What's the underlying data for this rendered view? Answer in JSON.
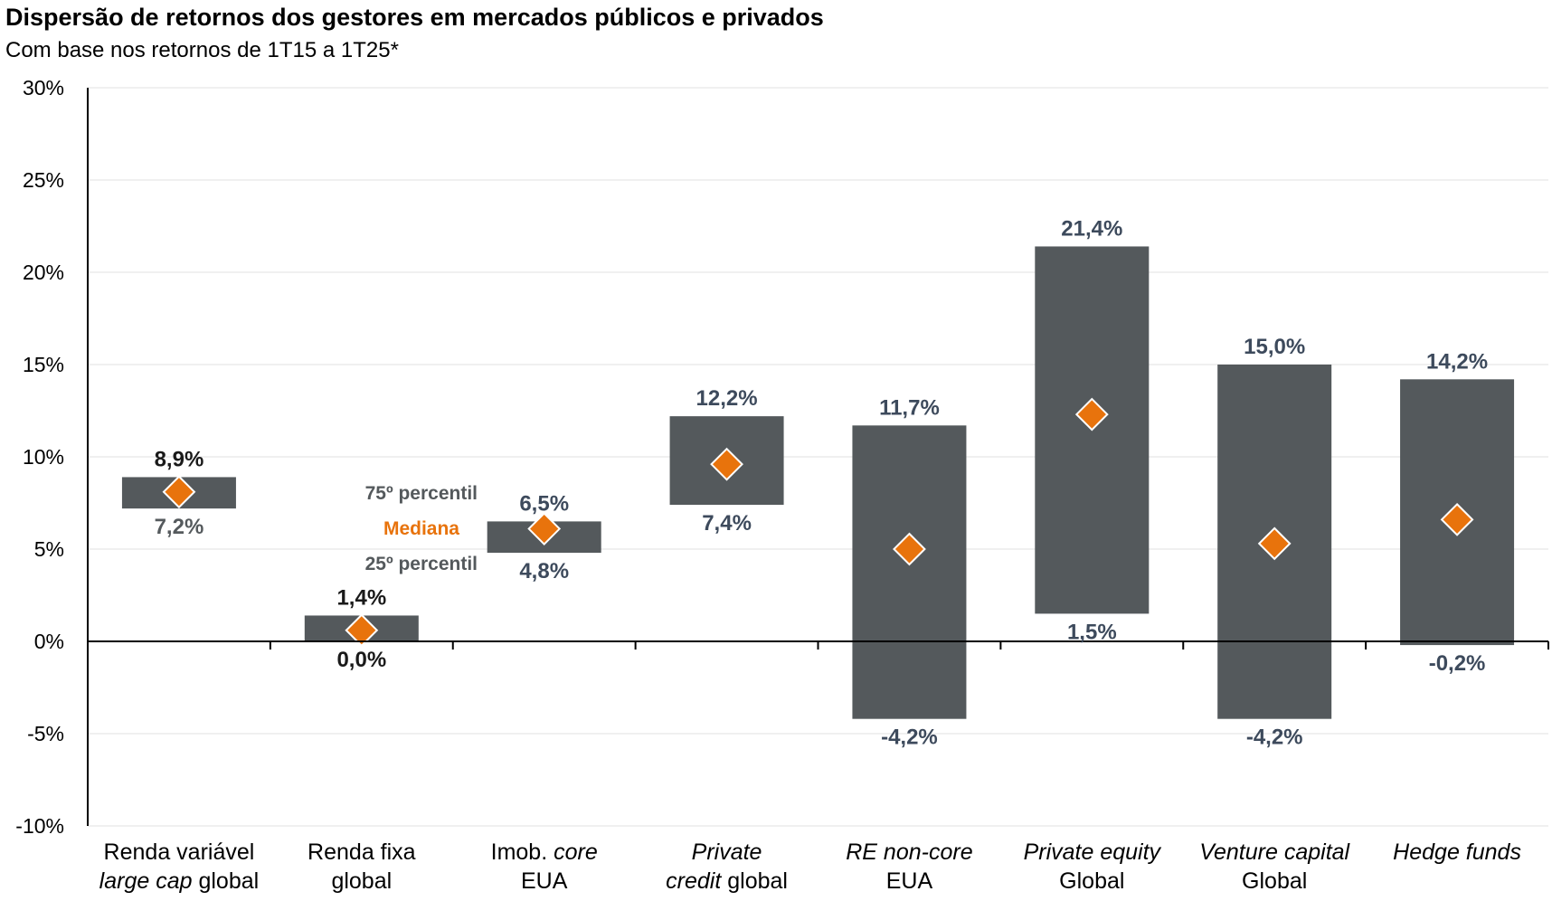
{
  "title": "Dispersão de retornos dos gestores em mercados públicos e privados",
  "subtitle": "Com base nos retornos de 1T15 a 1T25*",
  "colors": {
    "bar": "#54595c",
    "median": "#e8730c",
    "label_dark": "#1a1a1a",
    "label_slate": "#3d4a5c",
    "label_gray": "#555a5d",
    "legend_gray": "#54595c",
    "grid": "#e2e2e2"
  },
  "legend": {
    "p75": "75º percentil",
    "median": "Mediana",
    "p25": "25º percentil"
  },
  "chart_data": {
    "type": "bar",
    "subtype": "floating-range-with-median",
    "title": "Dispersão de retornos dos gestores em mercados públicos e privados",
    "subtitle": "Com base nos retornos de 1T15 a 1T25*",
    "ylim": [
      -10,
      30
    ],
    "yticks": [
      -10,
      -5,
      0,
      5,
      10,
      15,
      20,
      25,
      30
    ],
    "ytick_labels": [
      "-10%",
      "-5%",
      "0%",
      "5%",
      "10%",
      "15%",
      "20%",
      "25%",
      "30%"
    ],
    "grid": true,
    "legend_position": "inline-center-left",
    "categories": [
      {
        "parts": [
          [
            {
              "t": "Renda variável",
              "i": false
            }
          ],
          [
            {
              "t": "large cap",
              "i": true
            },
            {
              "t": " global",
              "i": false
            }
          ]
        ]
      },
      {
        "parts": [
          [
            {
              "t": "Renda fixa",
              "i": false
            }
          ],
          [
            {
              "t": "global",
              "i": false
            }
          ]
        ]
      },
      {
        "parts": [
          [
            {
              "t": "Imob. ",
              "i": false
            },
            {
              "t": "core",
              "i": true
            }
          ],
          [
            {
              "t": "EUA",
              "i": false
            }
          ]
        ]
      },
      {
        "parts": [
          [
            {
              "t": "Private",
              "i": true
            }
          ],
          [
            {
              "t": "credit",
              "i": true
            },
            {
              "t": " global",
              "i": false
            }
          ]
        ]
      },
      {
        "parts": [
          [
            {
              "t": "RE non-core",
              "i": true
            }
          ],
          [
            {
              "t": "EUA",
              "i": false
            }
          ]
        ]
      },
      {
        "parts": [
          [
            {
              "t": "Private equity",
              "i": true
            }
          ],
          [
            {
              "t": "Global",
              "i": false
            }
          ]
        ]
      },
      {
        "parts": [
          [
            {
              "t": "Venture capital",
              "i": true
            }
          ],
          [
            {
              "t": "Global",
              "i": false
            }
          ]
        ]
      },
      {
        "parts": [
          [
            {
              "t": "Hedge funds",
              "i": true
            }
          ]
        ]
      }
    ],
    "series": [
      {
        "name": "75º percentil",
        "values": [
          8.9,
          1.4,
          6.5,
          12.2,
          11.7,
          21.4,
          15.0,
          14.2
        ],
        "labels": [
          "8,9%",
          "1,4%",
          "6,5%",
          "12,2%",
          "11,7%",
          "21,4%",
          "15,0%",
          "14,2%"
        ]
      },
      {
        "name": "25º percentil",
        "values": [
          7.2,
          0.0,
          4.8,
          7.4,
          -4.2,
          1.5,
          -4.2,
          -0.2
        ],
        "labels": [
          "7,2%",
          "0,0%",
          "4,8%",
          "7,4%",
          "-4,2%",
          "1,5%",
          "-4,2%",
          "-0,2%"
        ]
      },
      {
        "name": "Mediana",
        "values": [
          8.1,
          0.6,
          6.1,
          9.6,
          5.0,
          12.3,
          5.3,
          6.6
        ]
      }
    ],
    "label_tone": {
      "top": [
        "dark",
        "dark",
        "slate",
        "slate",
        "slate",
        "slate",
        "slate",
        "slate"
      ],
      "bottom": [
        "gray",
        "dark",
        "slate",
        "slate",
        "slate",
        "slate",
        "slate",
        "slate"
      ]
    }
  }
}
